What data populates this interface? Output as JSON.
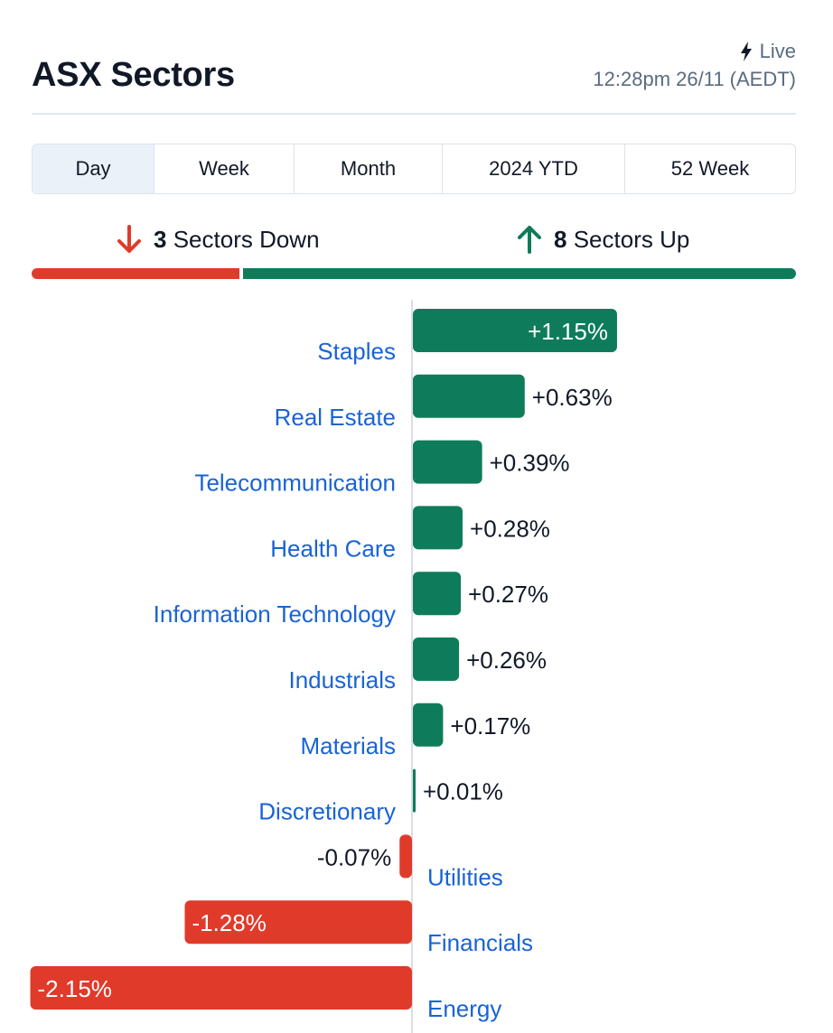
{
  "header": {
    "title": "ASX Sectors",
    "live_label": "Live",
    "live_icon": "lightning-bolt-icon",
    "timestamp": "12:28pm 26/11 (AEDT)"
  },
  "tabs": [
    {
      "label": "Day",
      "active": true
    },
    {
      "label": "Week",
      "active": false
    },
    {
      "label": "Month",
      "active": false
    },
    {
      "label": "2024 YTD",
      "active": false
    },
    {
      "label": "52 Week",
      "active": false
    }
  ],
  "summary": {
    "down_count": "3",
    "down_label": "Sectors Down",
    "up_count": "8",
    "up_label": "Sectors Up",
    "down_icon": "arrow-down-icon",
    "up_icon": "arrow-up-icon"
  },
  "colors": {
    "up": "#0e7c5a",
    "down": "#e03a2a",
    "label": "#1a63d6",
    "axis": "#d9dee5",
    "active_tab": "#eaf1f9"
  },
  "chart_data": {
    "type": "bar",
    "orientation": "horizontal",
    "categories": [
      "Staples",
      "Real Estate",
      "Telecommunication",
      "Health Care",
      "Information Technology",
      "Industrials",
      "Materials",
      "Discretionary",
      "Utilities",
      "Financials",
      "Energy"
    ],
    "values": [
      1.15,
      0.63,
      0.39,
      0.28,
      0.27,
      0.26,
      0.17,
      0.01,
      -0.07,
      -1.28,
      -2.15
    ],
    "value_labels": [
      "+1.15%",
      "+0.63%",
      "+0.39%",
      "+0.28%",
      "+0.27%",
      "+0.26%",
      "+0.17%",
      "+0.01%",
      "-0.07%",
      "-1.28%",
      "-2.15%"
    ],
    "unit": "%"
  }
}
